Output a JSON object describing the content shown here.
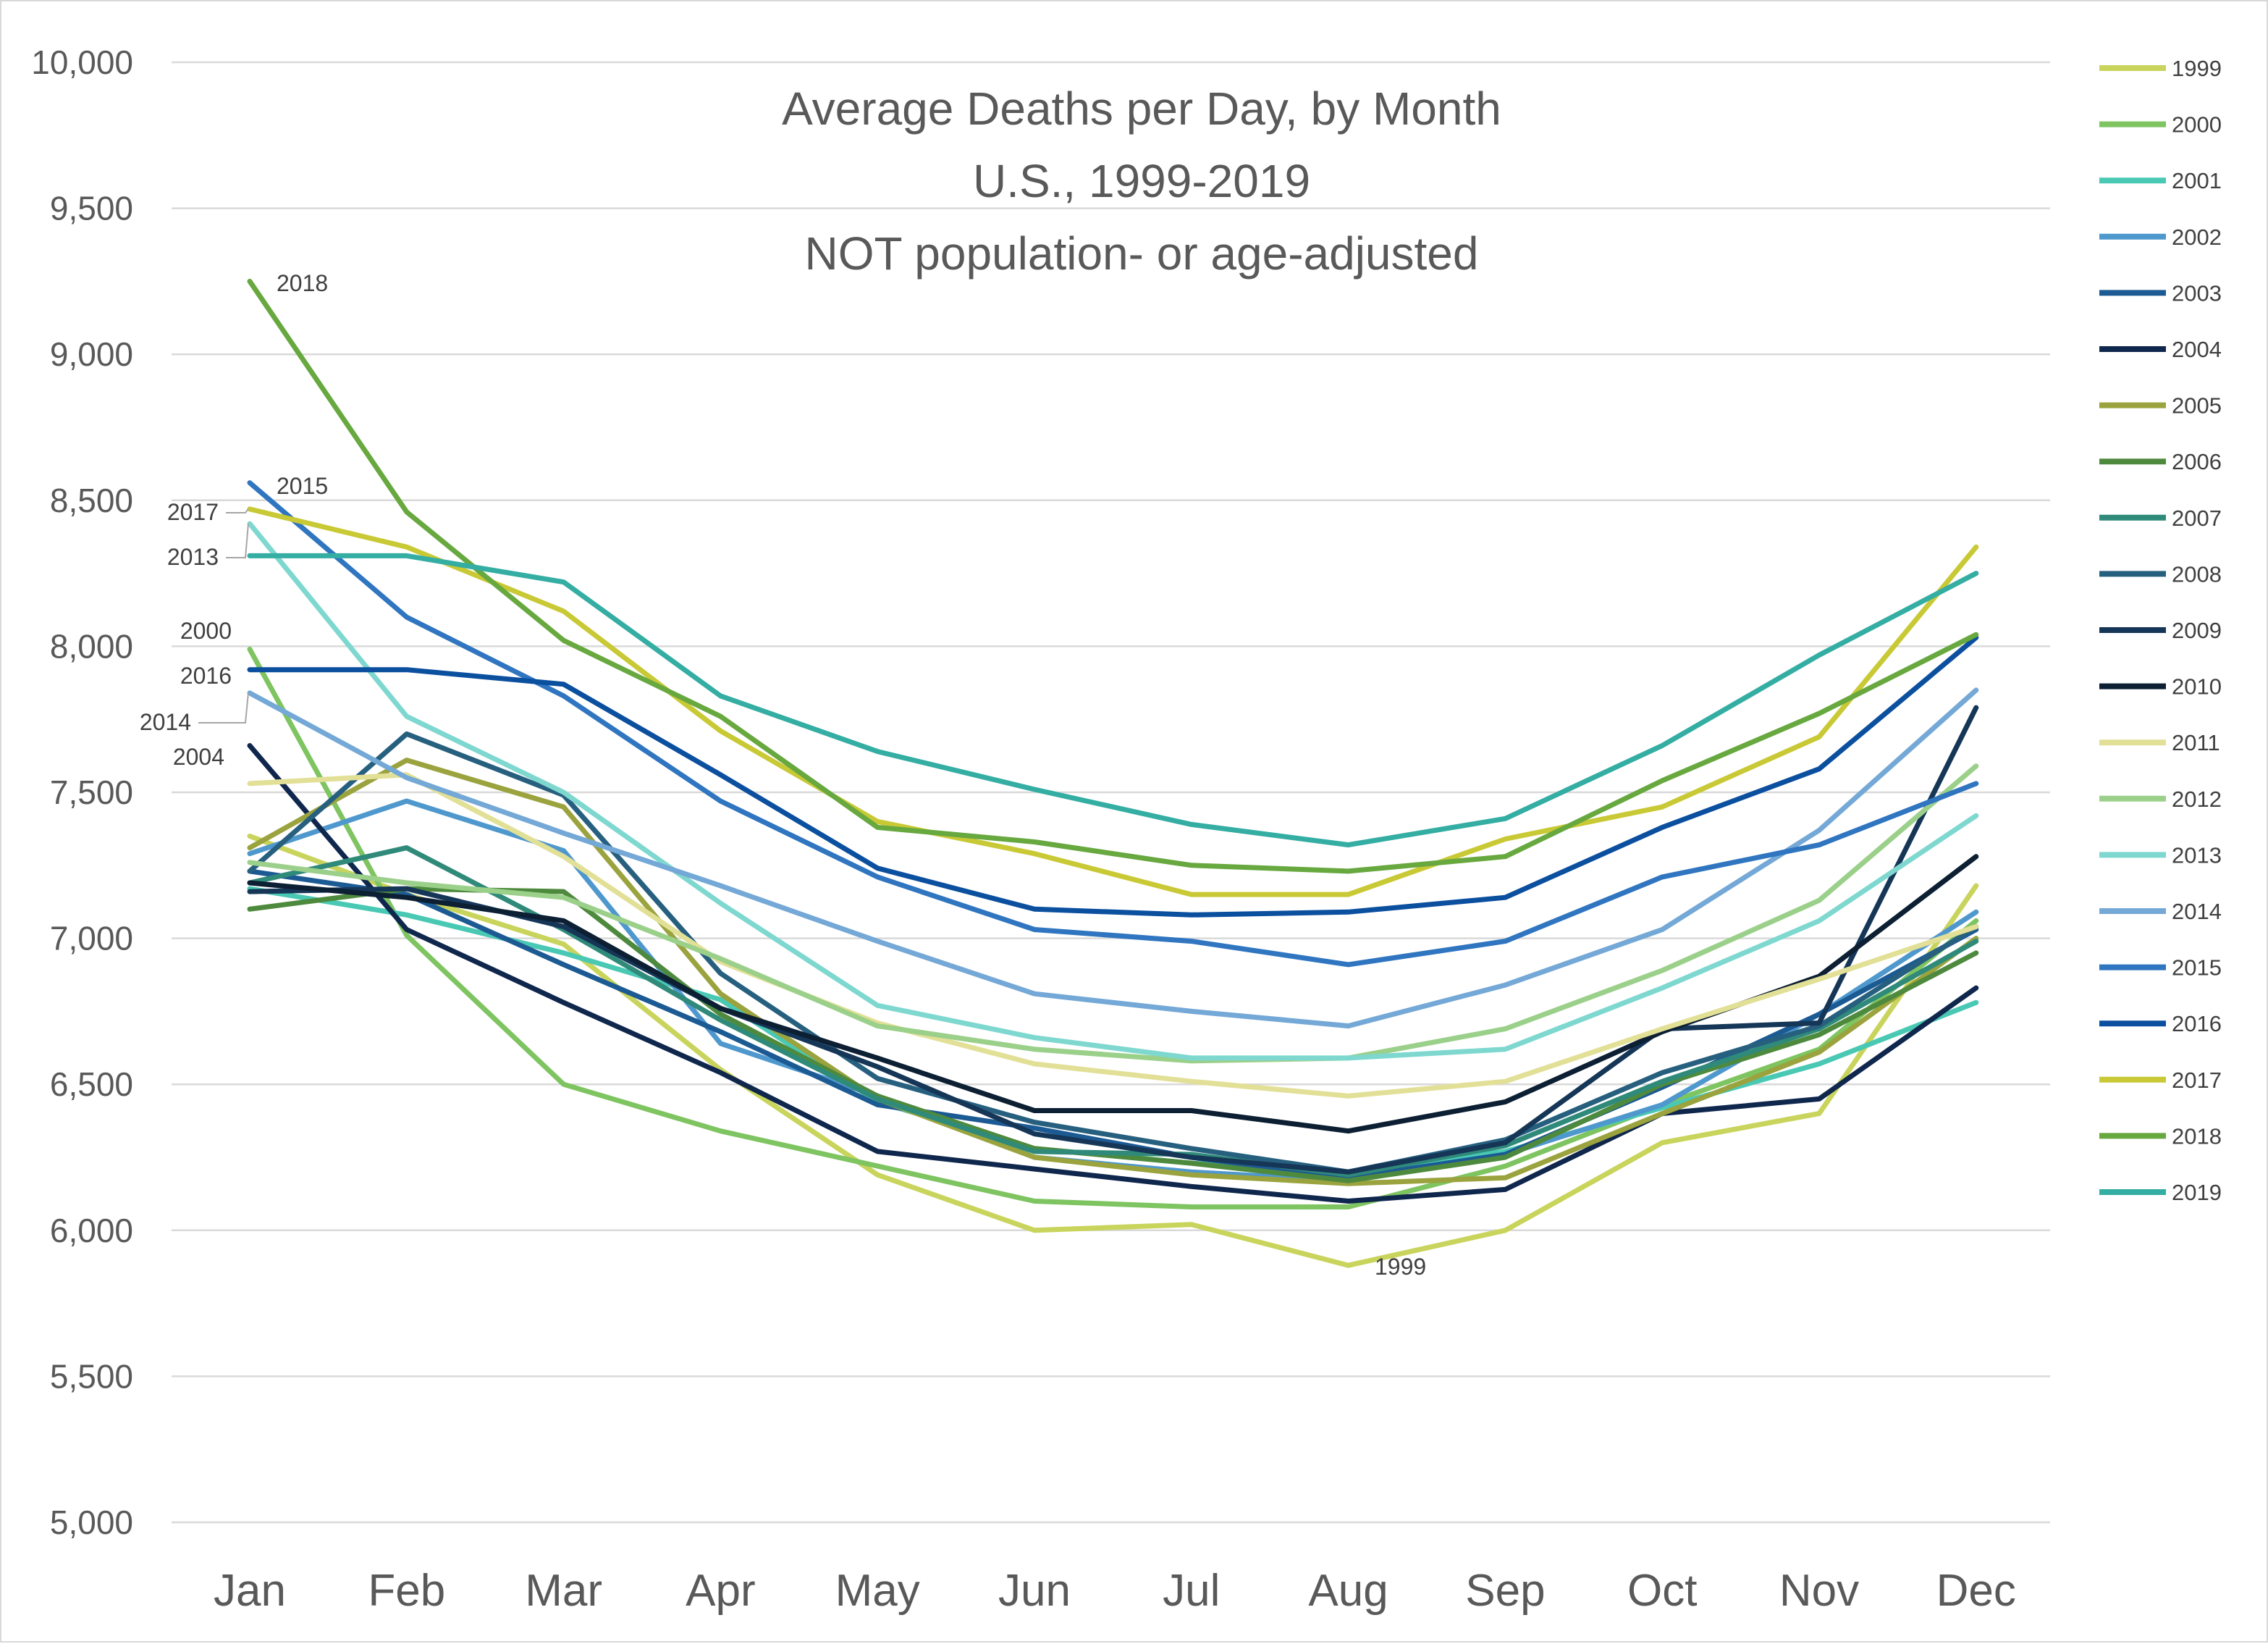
{
  "chart_data": {
    "type": "line",
    "title": [
      "Average Deaths per Day, by Month",
      "U.S., 1999-2019",
      "NOT population- or age-adjusted"
    ],
    "xlabel": "",
    "ylabel": "",
    "categories": [
      "Jan",
      "Feb",
      "Mar",
      "Apr",
      "May",
      "Jun",
      "Jul",
      "Aug",
      "Sep",
      "Oct",
      "Nov",
      "Dec"
    ],
    "ylim": [
      5000,
      10000
    ],
    "yticks": [
      5000,
      5500,
      6000,
      6500,
      7000,
      7500,
      8000,
      8500,
      9000,
      9500,
      10000
    ],
    "ytick_labels": [
      "5,000",
      "5,500",
      "6,000",
      "6,500",
      "7,000",
      "7,500",
      "8,000",
      "8,500",
      "9,000",
      "9,500",
      "10,000"
    ],
    "grid": "horizontal",
    "legend_position": "right",
    "series": [
      {
        "name": "1999",
        "color": "#c9d45c",
        "values": [
          7350,
          7150,
          6980,
          6550,
          6190,
          6000,
          6020,
          5880,
          6000,
          6300,
          6400,
          7180
        ]
      },
      {
        "name": "2000",
        "color": "#7ec460",
        "values": [
          7990,
          7010,
          6500,
          6340,
          6220,
          6100,
          6080,
          6080,
          6220,
          6430,
          6620,
          7060
        ]
      },
      {
        "name": "2001",
        "color": "#49c8b4",
        "values": [
          7170,
          7080,
          6950,
          6790,
          6440,
          6280,
          6230,
          6200,
          6270,
          6420,
          6570,
          6780
        ]
      },
      {
        "name": "2002",
        "color": "#4f98cd",
        "values": [
          7290,
          7470,
          7300,
          6640,
          6460,
          6250,
          6200,
          6170,
          6260,
          6430,
          6740,
          7090
        ]
      },
      {
        "name": "2003",
        "color": "#1c5a93",
        "values": [
          7230,
          7150,
          6910,
          6680,
          6430,
          6350,
          6250,
          6180,
          6260,
          6490,
          6740,
          7030
        ]
      },
      {
        "name": "2004",
        "color": "#10274d",
        "values": [
          7660,
          7030,
          6780,
          6540,
          6270,
          6210,
          6150,
          6100,
          6140,
          6400,
          6450,
          6830
        ]
      },
      {
        "name": "2005",
        "color": "#9aa33d",
        "values": [
          7310,
          7610,
          7450,
          6810,
          6450,
          6250,
          6190,
          6160,
          6180,
          6400,
          6610,
          7000
        ]
      },
      {
        "name": "2006",
        "color": "#4e8a3d",
        "values": [
          7100,
          7170,
          7160,
          6740,
          6460,
          6280,
          6230,
          6170,
          6250,
          6500,
          6670,
          6950
        ]
      },
      {
        "name": "2007",
        "color": "#2f8a7a",
        "values": [
          7190,
          7310,
          7030,
          6720,
          6450,
          6270,
          6260,
          6190,
          6290,
          6510,
          6690,
          6990
        ]
      },
      {
        "name": "2008",
        "color": "#27607f",
        "values": [
          7230,
          7700,
          7490,
          6880,
          6520,
          6370,
          6280,
          6200,
          6310,
          6540,
          6700,
          7040
        ]
      },
      {
        "name": "2009",
        "color": "#163657",
        "values": [
          7160,
          7170,
          7040,
          6760,
          6560,
          6330,
          6250,
          6200,
          6300,
          6690,
          6710,
          7790
        ]
      },
      {
        "name": "2010",
        "color": "#0c1f33",
        "values": [
          7190,
          7140,
          7060,
          6760,
          6590,
          6410,
          6410,
          6340,
          6440,
          6680,
          6870,
          7280
        ]
      },
      {
        "name": "2011",
        "color": "#e2e096",
        "values": [
          7530,
          7560,
          7280,
          6920,
          6710,
          6570,
          6510,
          6460,
          6510,
          6690,
          6860,
          7040
        ]
      },
      {
        "name": "2012",
        "color": "#9bd08a",
        "values": [
          7260,
          7190,
          7140,
          6930,
          6700,
          6620,
          6580,
          6590,
          6690,
          6890,
          7130,
          7590
        ]
      },
      {
        "name": "2013",
        "color": "#7ed8d0",
        "values": [
          8420,
          7760,
          7500,
          7120,
          6770,
          6660,
          6590,
          6590,
          6620,
          6830,
          7060,
          7420
        ]
      },
      {
        "name": "2014",
        "color": "#74a8d6",
        "values": [
          7840,
          7550,
          7360,
          7180,
          6990,
          6810,
          6750,
          6700,
          6840,
          7030,
          7370,
          7850
        ]
      },
      {
        "name": "2015",
        "color": "#2f75c0",
        "values": [
          8560,
          8100,
          7830,
          7470,
          7210,
          7030,
          6990,
          6910,
          6990,
          7210,
          7320,
          7530
        ]
      },
      {
        "name": "2016",
        "color": "#0b4f9f",
        "values": [
          7920,
          7920,
          7870,
          7560,
          7240,
          7100,
          7080,
          7090,
          7140,
          7380,
          7580,
          8030
        ]
      },
      {
        "name": "2017",
        "color": "#c8c935",
        "values": [
          8470,
          8340,
          8120,
          7710,
          7400,
          7290,
          7150,
          7150,
          7340,
          7450,
          7690,
          8340
        ]
      },
      {
        "name": "2018",
        "color": "#67a83f",
        "values": [
          9250,
          8460,
          8020,
          7760,
          7380,
          7330,
          7250,
          7230,
          7280,
          7540,
          7770,
          8040
        ]
      },
      {
        "name": "2019",
        "color": "#34ada3",
        "values": [
          8310,
          8310,
          8220,
          7830,
          7640,
          7510,
          7390,
          7320,
          7410,
          7660,
          7970,
          8250
        ]
      }
    ],
    "annotations": [
      {
        "text": "2018",
        "series": "2018",
        "month": "Jan"
      },
      {
        "text": "2015",
        "series": "2015",
        "month": "Jan"
      },
      {
        "text": "2017",
        "series": "2017",
        "month": "Jan"
      },
      {
        "text": "2013",
        "series": "2013",
        "month": "Jan"
      },
      {
        "text": "2000",
        "series": "2000",
        "month": "Jan"
      },
      {
        "text": "2016",
        "series": "2016",
        "month": "Jan"
      },
      {
        "text": "2014",
        "series": "2014",
        "month": "Jan"
      },
      {
        "text": "2004",
        "series": "2004",
        "month": "Jan"
      },
      {
        "text": "1999",
        "series": "1999",
        "month": "Aug"
      }
    ]
  }
}
